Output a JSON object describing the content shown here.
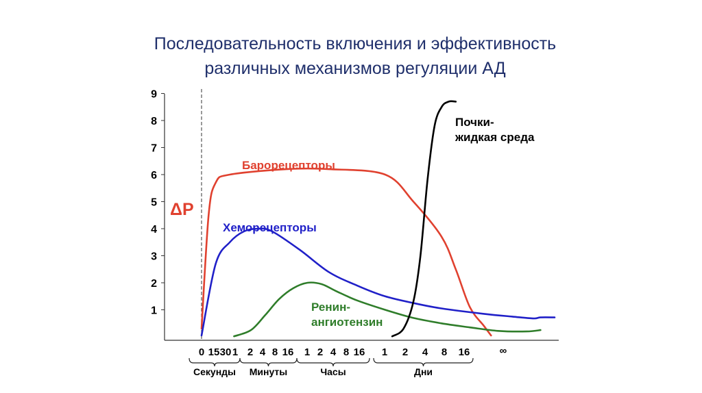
{
  "title": {
    "line1": "Последовательность включения и эффективность",
    "line2": "различных механизмов регуляции АД"
  },
  "chart_data": {
    "type": "line",
    "ylabel": "ΔP",
    "ylim": [
      0,
      9
    ],
    "yticks": [
      "1",
      "2",
      "3",
      "4",
      "5",
      "6",
      "7",
      "8",
      "9"
    ],
    "x_tick_labels": [
      "0",
      "15",
      "30",
      "1",
      "2",
      "4",
      "8",
      "16",
      "1",
      "2",
      "4",
      "8",
      "16",
      "1",
      "2",
      "4",
      "8",
      "16",
      "∞"
    ],
    "time_groups": [
      "Секунды",
      "Минуты",
      "Часы",
      "Дни"
    ],
    "series": [
      {
        "name": "Барорецепторы",
        "color": "#e0412f",
        "points": [
          [
            0,
            0.3
          ],
          [
            0.5,
            4.5
          ],
          [
            1,
            5.7
          ],
          [
            2,
            6.0
          ],
          [
            6,
            6.2
          ],
          [
            9,
            6.2
          ],
          [
            13,
            6.0
          ],
          [
            15,
            5.0
          ],
          [
            17,
            3.7
          ],
          [
            18,
            2.5
          ],
          [
            19,
            1.1
          ],
          [
            20,
            0.4
          ],
          [
            20.5,
            0.05
          ]
        ]
      },
      {
        "name": "Хеморецепторы",
        "color": "#2020c8",
        "points": [
          [
            0,
            0.05
          ],
          [
            1,
            2.7
          ],
          [
            2,
            3.5
          ],
          [
            3,
            3.9
          ],
          [
            4,
            4.0
          ],
          [
            5,
            3.9
          ],
          [
            7,
            3.2
          ],
          [
            9,
            2.4
          ],
          [
            11,
            1.9
          ],
          [
            13,
            1.5
          ],
          [
            15,
            1.25
          ],
          [
            17,
            1.05
          ],
          [
            20,
            0.85
          ],
          [
            22,
            0.75
          ],
          [
            23.5,
            0.68
          ],
          [
            24,
            0.72
          ],
          [
            25,
            0.72
          ]
        ]
      },
      {
        "name": "Ренин-\nангиотензин",
        "color": "#2f7d2a",
        "points": [
          [
            2.3,
            0.02
          ],
          [
            3.5,
            0.25
          ],
          [
            4.5,
            0.8
          ],
          [
            5.5,
            1.4
          ],
          [
            6.5,
            1.8
          ],
          [
            7.5,
            2.0
          ],
          [
            8.5,
            1.95
          ],
          [
            9.5,
            1.7
          ],
          [
            11,
            1.35
          ],
          [
            13,
            1.0
          ],
          [
            15,
            0.7
          ],
          [
            17,
            0.5
          ],
          [
            19,
            0.35
          ],
          [
            21,
            0.22
          ],
          [
            23,
            0.2
          ],
          [
            24,
            0.25
          ]
        ]
      },
      {
        "name": "Почки-\nжидкая среда",
        "color": "#000000",
        "points": [
          [
            13.5,
            0.02
          ],
          [
            14.3,
            0.3
          ],
          [
            15,
            1.3
          ],
          [
            15.5,
            3.0
          ],
          [
            16,
            5.8
          ],
          [
            16.5,
            7.8
          ],
          [
            17,
            8.5
          ],
          [
            17.5,
            8.7
          ],
          [
            18,
            8.7
          ]
        ]
      }
    ]
  }
}
